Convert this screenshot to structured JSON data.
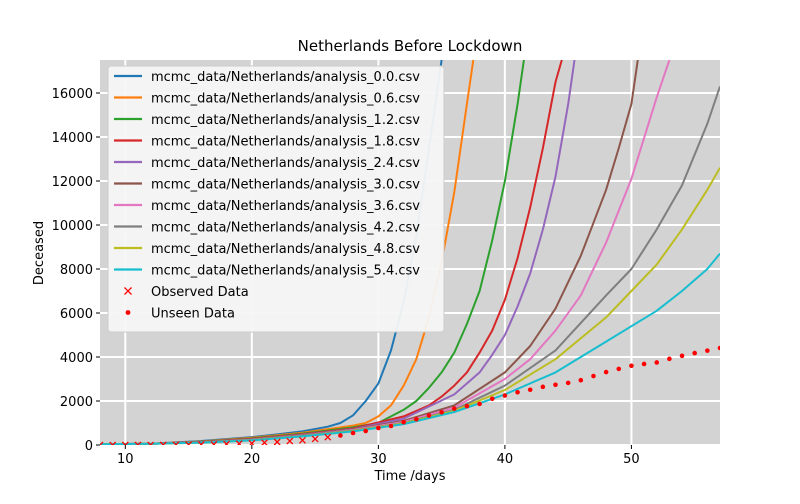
{
  "chart_data": {
    "type": "line",
    "title": "Netherlands Before Lockdown",
    "xlabel": "Time /days",
    "ylabel": "Deceased",
    "xlim": [
      8,
      57
    ],
    "ylim": [
      0,
      17500
    ],
    "x_ticks": [
      10,
      20,
      30,
      40,
      50
    ],
    "y_ticks": [
      0,
      2000,
      4000,
      6000,
      8000,
      10000,
      12000,
      14000,
      16000
    ],
    "grid": true,
    "background": "#d3d3d3",
    "legend_placement": "top-left",
    "series": [
      {
        "name": "mcmc_data/Netherlands/analysis_0.0.csv",
        "color": "#1f77b4",
        "x": [
          8,
          12,
          16,
          20,
          22,
          24,
          26,
          27,
          28,
          29,
          30,
          31,
          32,
          33,
          34,
          35
        ],
        "y": [
          30,
          60,
          180,
          360,
          480,
          620,
          830,
          1000,
          1350,
          2000,
          2800,
          4300,
          6500,
          9500,
          13500,
          17500
        ]
      },
      {
        "name": "mcmc_data/Netherlands/analysis_0.6.csv",
        "color": "#ff7f0e",
        "x": [
          8,
          12,
          16,
          20,
          24,
          27,
          28,
          29,
          30,
          31,
          32,
          33,
          34,
          35,
          36,
          37,
          37.5
        ],
        "y": [
          30,
          60,
          160,
          330,
          560,
          800,
          880,
          1000,
          1300,
          1800,
          2700,
          3900,
          5800,
          8300,
          11500,
          15500,
          17500
        ]
      },
      {
        "name": "mcmc_data/Netherlands/analysis_1.2.csv",
        "color": "#2ca02c",
        "x": [
          8,
          12,
          16,
          20,
          24,
          28,
          30,
          31,
          32,
          33,
          34,
          35,
          36,
          37,
          38,
          39,
          40,
          41,
          41.5
        ],
        "y": [
          30,
          60,
          150,
          300,
          520,
          800,
          1000,
          1300,
          1600,
          2000,
          2600,
          3300,
          4200,
          5500,
          7000,
          9300,
          12000,
          15500,
          17500
        ]
      },
      {
        "name": "mcmc_data/Netherlands/analysis_1.8.csv",
        "color": "#d62728",
        "x": [
          8,
          12,
          16,
          20,
          24,
          28,
          32,
          34,
          35,
          36,
          37,
          38,
          39,
          40,
          41,
          42,
          43,
          44,
          44.5
        ],
        "y": [
          30,
          60,
          140,
          280,
          490,
          750,
          1300,
          1800,
          2200,
          2700,
          3300,
          4200,
          5200,
          6600,
          8500,
          10800,
          13500,
          16500,
          17500
        ]
      },
      {
        "name": "mcmc_data/Netherlands/analysis_2.4.csv",
        "color": "#9467bd",
        "x": [
          8,
          12,
          16,
          20,
          24,
          28,
          32,
          36,
          38,
          39,
          40,
          41,
          42,
          43,
          44,
          45,
          45.5
        ],
        "y": [
          30,
          60,
          130,
          260,
          470,
          720,
          1200,
          2300,
          3300,
          4100,
          5000,
          6300,
          7800,
          9800,
          12200,
          15500,
          17500
        ]
      },
      {
        "name": "mcmc_data/Netherlands/analysis_3.0.csv",
        "color": "#8c564b",
        "x": [
          8,
          12,
          16,
          20,
          24,
          28,
          32,
          36,
          40,
          42,
          44,
          46,
          48,
          49,
          50,
          50.5
        ],
        "y": [
          30,
          60,
          130,
          250,
          450,
          700,
          1100,
          1800,
          3300,
          4500,
          6200,
          8600,
          11600,
          13500,
          15500,
          17500
        ]
      },
      {
        "name": "mcmc_data/Netherlands/analysis_3.6.csv",
        "color": "#e377c2",
        "x": [
          8,
          12,
          16,
          20,
          24,
          28,
          32,
          36,
          40,
          42,
          44,
          46,
          48,
          50,
          52,
          53
        ],
        "y": [
          30,
          60,
          120,
          240,
          430,
          680,
          1050,
          1700,
          3000,
          3900,
          5200,
          6800,
          9200,
          12100,
          15800,
          17500
        ]
      },
      {
        "name": "mcmc_data/Netherlands/analysis_4.2.csv",
        "color": "#7f7f7f",
        "x": [
          8,
          12,
          16,
          20,
          24,
          28,
          32,
          36,
          40,
          44,
          48,
          50,
          52,
          54,
          56,
          57
        ],
        "y": [
          30,
          60,
          120,
          230,
          420,
          660,
          1000,
          1600,
          2700,
          4300,
          6800,
          8000,
          9800,
          11800,
          14600,
          16300
        ]
      },
      {
        "name": "mcmc_data/Netherlands/analysis_4.8.csv",
        "color": "#bcbd22",
        "x": [
          8,
          12,
          16,
          20,
          24,
          28,
          32,
          36,
          40,
          44,
          48,
          50,
          52,
          54,
          56,
          57
        ],
        "y": [
          30,
          60,
          110,
          220,
          400,
          640,
          980,
          1550,
          2500,
          3900,
          5800,
          7000,
          8200,
          9800,
          11600,
          12600
        ]
      },
      {
        "name": "mcmc_data/Netherlands/analysis_5.4.csv",
        "color": "#17becf",
        "x": [
          8,
          12,
          16,
          20,
          24,
          28,
          32,
          36,
          40,
          44,
          48,
          50,
          52,
          54,
          56,
          57
        ],
        "y": [
          30,
          60,
          110,
          210,
          390,
          620,
          950,
          1500,
          2300,
          3300,
          4700,
          5400,
          6100,
          7000,
          8000,
          8700
        ]
      }
    ],
    "observed": {
      "name": "Observed Data",
      "color": "#ff0000",
      "marker": "x",
      "x": [
        8,
        9,
        10,
        11,
        12,
        13,
        14,
        15,
        16,
        17,
        18,
        19,
        20,
        21,
        22,
        23,
        24,
        25,
        26
      ],
      "y": [
        0,
        0,
        0,
        2,
        3,
        5,
        10,
        12,
        20,
        24,
        43,
        58,
        76,
        106,
        136,
        179,
        213,
        276,
        356
      ]
    },
    "unseen": {
      "name": "Unseen Data",
      "color": "#ff0000",
      "marker": "dot",
      "x": [
        27,
        28,
        29,
        30,
        31,
        32,
        33,
        34,
        35,
        36,
        37,
        38,
        39,
        40,
        41,
        42,
        43,
        44,
        45,
        46,
        47,
        48,
        49,
        50,
        51,
        52,
        53,
        54,
        55,
        56,
        57
      ],
      "y": [
        434,
        546,
        639,
        771,
        864,
        1039,
        1173,
        1339,
        1487,
        1651,
        1766,
        1867,
        2101,
        2248,
        2396,
        2511,
        2643,
        2737,
        2823,
        2945,
        3134,
        3315,
        3459,
        3601,
        3684,
        3751,
        3916,
        4054,
        4177,
        4289,
        4409
      ]
    }
  }
}
